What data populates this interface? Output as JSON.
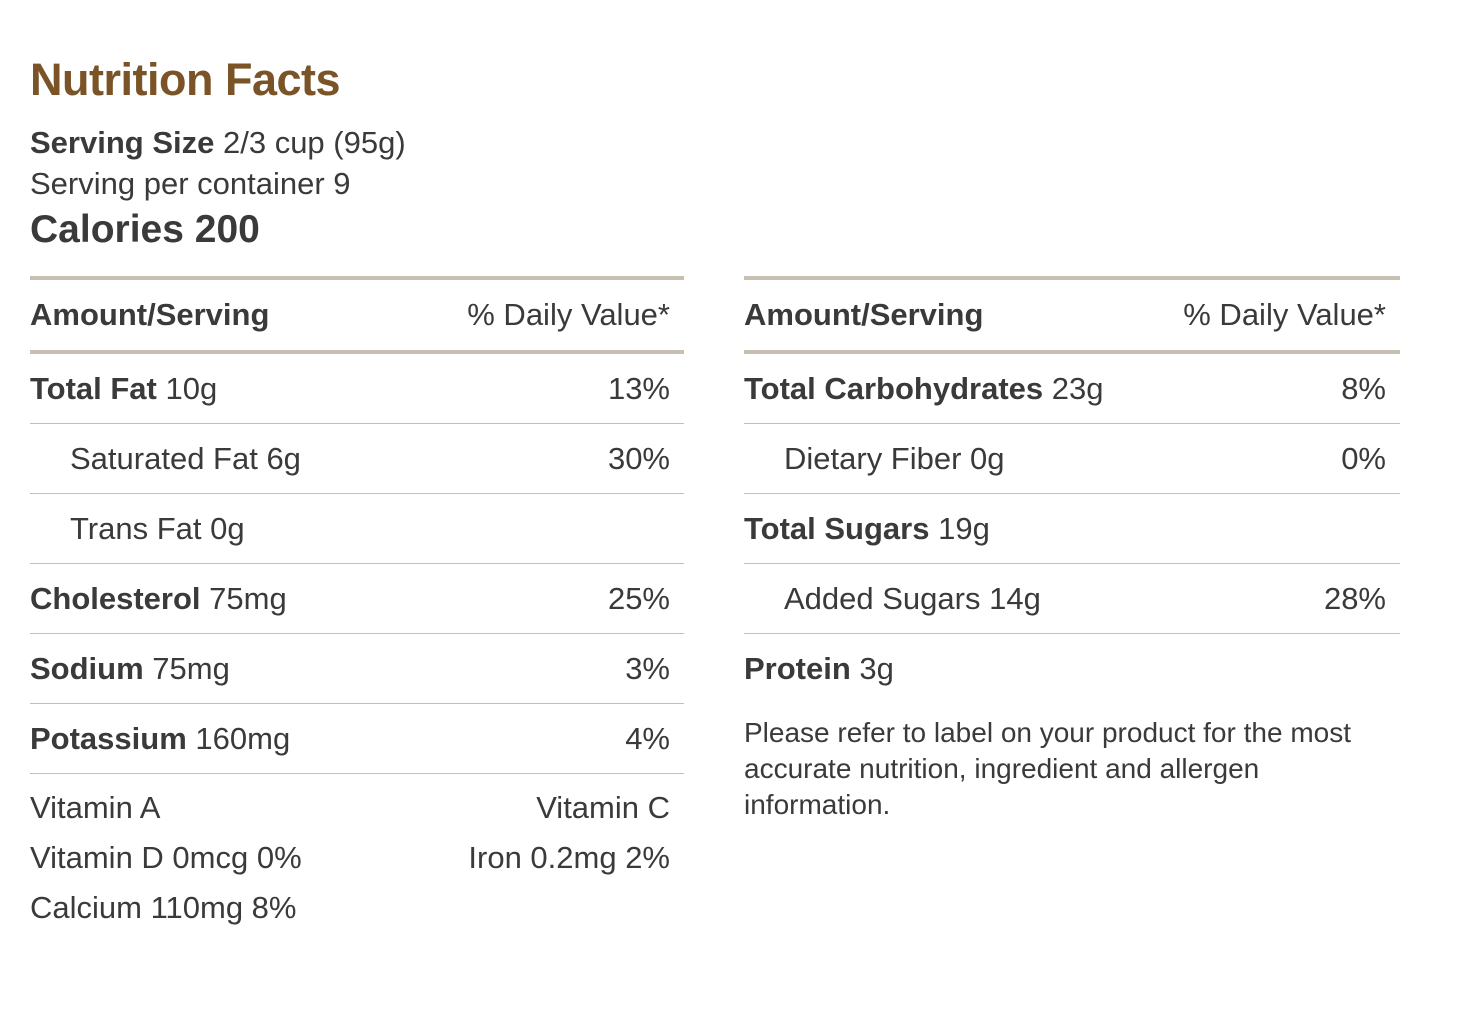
{
  "title": "Nutrition Facts",
  "serving": {
    "size_label": "Serving Size",
    "size_value": "2/3 cup (95g)",
    "per_container": "Serving per container 9",
    "calories_label": "Calories",
    "calories_value": "200"
  },
  "header": {
    "amount_label": "Amount/Serving",
    "daily_value_label": "% Daily Value*"
  },
  "left_rows": [
    {
      "name": "Total Fat",
      "amount": "10g",
      "pct": "13%"
    },
    {
      "name": "Saturated Fat 6g",
      "amount": "",
      "pct": "30%"
    },
    {
      "name": "Trans Fat 0g",
      "amount": "",
      "pct": ""
    },
    {
      "name": "Cholesterol",
      "amount": "75mg",
      "pct": "25%"
    },
    {
      "name": "Sodium",
      "amount": "75mg",
      "pct": "3%"
    },
    {
      "name": "Potassium",
      "amount": "160mg",
      "pct": "4%"
    }
  ],
  "right_rows": [
    {
      "name": "Total Carbohydrates",
      "amount": "23g",
      "pct": "8%"
    },
    {
      "name": "Dietary Fiber 0g",
      "amount": "",
      "pct": "0%"
    },
    {
      "name": "Total Sugars",
      "amount": "19g",
      "pct": ""
    },
    {
      "name": "Added Sugars 14g",
      "amount": "",
      "pct": "28%"
    },
    {
      "name": "Protein",
      "amount": "3g",
      "pct": ""
    }
  ],
  "vitamins": {
    "vitamin_a": "Vitamin A",
    "vitamin_c": "Vitamin C",
    "vitamin_d": "Vitamin D 0mcg 0%",
    "iron": "Iron 0.2mg 2%",
    "calcium": "Calcium 110mg 8%"
  },
  "note": "Please refer to label on your product for the most accurate nutrition, ingredient and allergen information."
}
